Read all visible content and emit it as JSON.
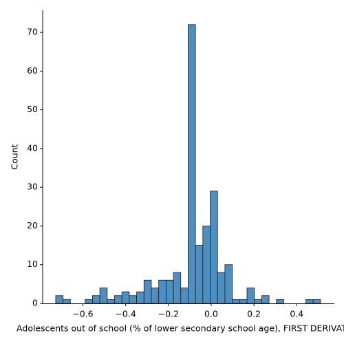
{
  "chart_data": {
    "type": "histogram",
    "xlabel": "Adolescents out of school (% of lower secondary school age), FIRST DERIVATIVE",
    "ylabel": "Count",
    "bins": [
      -0.727,
      -0.6926,
      -0.6582,
      -0.6238,
      -0.5894,
      -0.555,
      -0.5206,
      -0.4862,
      -0.4518,
      -0.4174,
      -0.383,
      -0.3486,
      -0.3142,
      -0.2798,
      -0.2454,
      -0.211,
      -0.1766,
      -0.1422,
      -0.1078,
      -0.0734,
      -0.039,
      -0.0046,
      0.0298,
      0.0642,
      0.0986,
      0.133,
      0.1674,
      0.2018,
      0.2362,
      0.2706,
      0.305,
      0.3394,
      0.3738,
      0.4082,
      0.4426,
      0.477,
      0.5114
    ],
    "values": [
      2,
      1,
      0,
      0,
      1,
      2,
      4,
      1,
      2,
      3,
      2,
      3,
      6,
      4,
      6,
      6,
      8,
      4,
      72,
      15,
      20,
      29,
      8,
      10,
      1,
      1,
      4,
      1,
      2,
      0,
      1,
      0,
      0,
      0,
      1,
      1
    ],
    "color": "#4f8fc0",
    "xlim": [
      -0.788,
      0.576
    ],
    "ylim": [
      0,
      75.7
    ],
    "xticks": [
      {
        "value": -0.6,
        "label": "−0.6"
      },
      {
        "value": -0.4,
        "label": "−0.4"
      },
      {
        "value": -0.2,
        "label": "−0.2"
      },
      {
        "value": 0,
        "label": "0.0"
      },
      0.2,
      0.4
    ],
    "yticks": [
      0,
      10,
      20,
      30,
      40,
      50,
      60,
      70
    ],
    "grid": false
  }
}
